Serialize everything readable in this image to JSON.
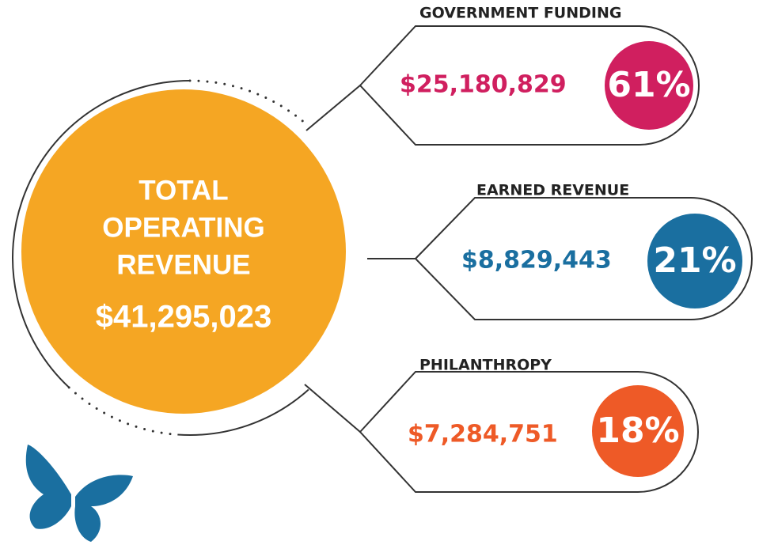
{
  "total": {
    "title_lines": [
      "TOTAL",
      "OPERATING",
      "REVENUE"
    ],
    "amount": "$41,295,023"
  },
  "items": [
    {
      "label": "GOVERNMENT FUNDING",
      "amount": "$25,180,829",
      "percent": "61%",
      "color": "#d01f5f"
    },
    {
      "label": "EARNED REVENUE",
      "amount": "$8,829,443",
      "percent": "21%",
      "color": "#1a6fa0"
    },
    {
      "label": "PHILANTHROPY",
      "amount": "$7,284,751",
      "percent": "18%",
      "color": "#ee5a27"
    }
  ]
}
